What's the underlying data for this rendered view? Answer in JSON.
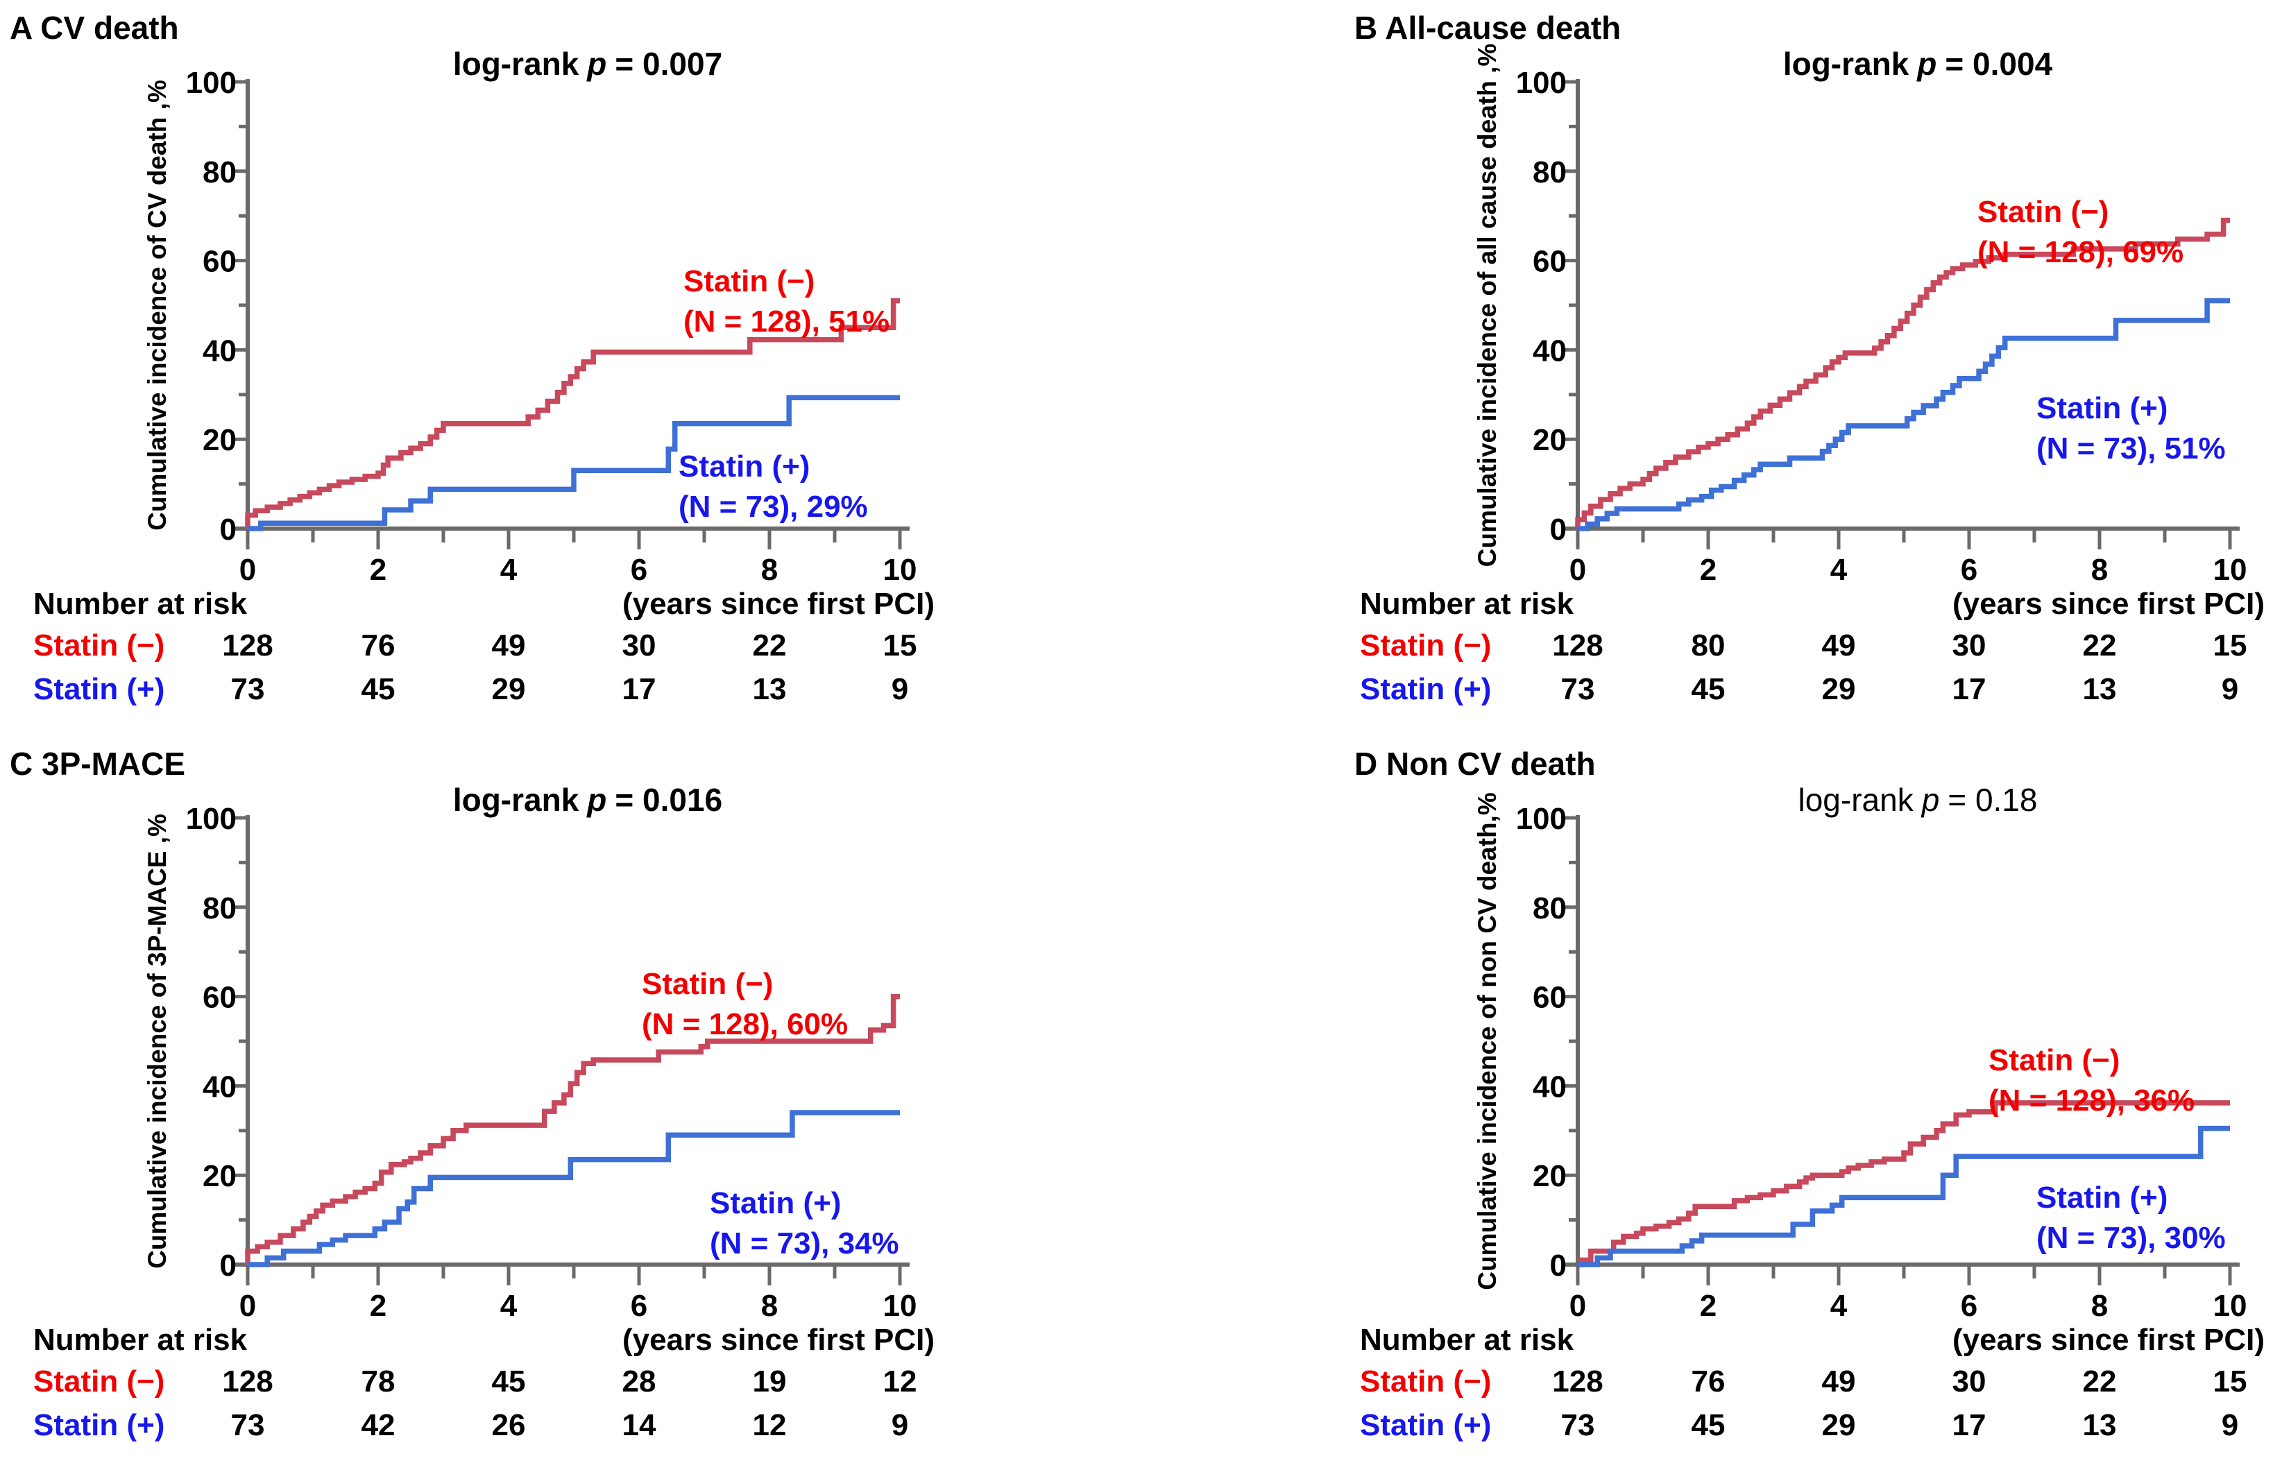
{
  "figure_name": "Kaplan-Meier cumulative incidence curves, statin (−) vs statin (+) after first PCI",
  "colors": {
    "curve_red": "#c8485c",
    "curve_blue": "#3e70d6",
    "label_red": "#f20000",
    "label_blue": "#1717ec",
    "axis_gray": "#6a6a6a",
    "text_black": "#000000"
  },
  "common": {
    "number_at_risk_label": "Number at risk",
    "x_axis_caption": "(years since first PCI)"
  },
  "chart_data": [
    {
      "id": "A",
      "type": "step-line",
      "title": "A CV death",
      "p_prefix": "log-rank",
      "p_sym": "p",
      "p_rest": "= 0.007",
      "p_bold": true,
      "ylabel": "Cumulative incidence of CV death ,%",
      "xlabel": "(years since first PCI)",
      "xlim": [
        0,
        10
      ],
      "ylim": [
        0,
        100
      ],
      "x_ticks": [
        "0",
        "2",
        "4",
        "6",
        "8",
        "10"
      ],
      "y_ticks": [
        "0",
        "20",
        "40",
        "60",
        "80",
        "100"
      ],
      "series": [
        {
          "name": "Statin (−)",
          "n": 128,
          "final_pct": 51,
          "color_key": "red",
          "label_line1": "Statin (−)",
          "label_line2": "(N = 128), 51%",
          "label_anchor": {
            "x": 985,
            "y": 378
          },
          "x": [
            0,
            0.12,
            0.3,
            0.5,
            0.65,
            0.8,
            0.95,
            1.1,
            1.25,
            1.4,
            1.6,
            1.8,
            2.0,
            2.08,
            2.15,
            2.35,
            2.5,
            2.65,
            2.8,
            2.9,
            3.0,
            4.3,
            4.45,
            4.6,
            4.75,
            4.85,
            4.95,
            5.05,
            5.15,
            5.3,
            7.7,
            9.1,
            9.9,
            10
          ],
          "y": [
            3,
            4,
            4.8,
            5.6,
            6.4,
            7.2,
            8,
            8.8,
            9.6,
            10.4,
            11,
            11.7,
            12.4,
            14.2,
            15.8,
            17,
            18,
            19,
            20.5,
            22,
            23.5,
            25,
            26.5,
            28.5,
            30.5,
            32.5,
            34,
            35.8,
            37.3,
            39.5,
            42.3,
            45,
            51,
            51
          ]
        },
        {
          "name": "Statin (+)",
          "n": 73,
          "final_pct": 29,
          "color_key": "blue",
          "label_line1": "Statin (+)",
          "label_line2": "(N = 73), 29%",
          "label_anchor": {
            "x": 978,
            "y": 645
          },
          "x": [
            0,
            0.2,
            2.1,
            2.5,
            2.8,
            5.0,
            6.45,
            6.55,
            8.3,
            10
          ],
          "y": [
            0,
            1.2,
            4.2,
            6.2,
            8.8,
            13,
            17.8,
            23.5,
            29.3,
            29.3
          ]
        }
      ],
      "number_at_risk": {
        "rows": [
          {
            "label": "Statin (−)",
            "color_key": "red",
            "values": [
              "128",
              "76",
              "49",
              "30",
              "22",
              "15"
            ]
          },
          {
            "label": "Statin (+)",
            "color_key": "blue",
            "values": [
              "73",
              "45",
              "29",
              "17",
              "13",
              "9"
            ]
          }
        ]
      }
    },
    {
      "id": "B",
      "type": "step-line",
      "title": "B All-cause death",
      "p_prefix": "log-rank",
      "p_sym": "p",
      "p_rest": "= 0.004",
      "p_bold": true,
      "ylabel": "Cumulative incidence of all cause death ,%",
      "xlabel": "(years since first PCI)",
      "xlim": [
        0,
        10
      ],
      "ylim": [
        0,
        100
      ],
      "x_ticks": [
        "0",
        "2",
        "4",
        "6",
        "8",
        "10"
      ],
      "y_ticks": [
        "0",
        "20",
        "40",
        "60",
        "80",
        "100"
      ],
      "series": [
        {
          "name": "Statin (−)",
          "n": 128,
          "final_pct": 69,
          "color_key": "red",
          "label_line1": "Statin (−)",
          "label_line2": "(N = 128), 69%",
          "label_anchor": {
            "x": 1205,
            "y": 278
          },
          "x": [
            0,
            0.1,
            0.2,
            0.35,
            0.5,
            0.65,
            0.8,
            1.0,
            1.1,
            1.2,
            1.35,
            1.5,
            1.7,
            1.85,
            2.0,
            2.15,
            2.3,
            2.45,
            2.6,
            2.7,
            2.8,
            2.95,
            3.1,
            3.25,
            3.4,
            3.5,
            3.65,
            3.8,
            3.9,
            4.0,
            4.1,
            4.55,
            4.65,
            4.75,
            4.85,
            4.95,
            5.05,
            5.15,
            5.25,
            5.35,
            5.45,
            5.55,
            5.65,
            5.75,
            5.9,
            6.1,
            6.3,
            6.55,
            7.6,
            8.55,
            9.2,
            9.65,
            9.9,
            10
          ],
          "y": [
            2,
            3.5,
            5,
            6.5,
            7.8,
            9,
            10,
            11,
            12.3,
            13.5,
            14.8,
            16,
            17.2,
            18.2,
            19,
            20,
            21,
            22.3,
            23.6,
            25,
            26.3,
            27.6,
            29,
            30.4,
            31.8,
            33,
            34.4,
            36,
            37.3,
            38.3,
            39.3,
            40.4,
            41.8,
            43.2,
            44.8,
            46.4,
            48.2,
            50,
            51.8,
            53.5,
            55,
            56.3,
            57.3,
            58.2,
            59,
            59.8,
            60.6,
            61.4,
            62.6,
            63.7,
            64.8,
            65.9,
            69,
            69
          ]
        },
        {
          "name": "Statin (+)",
          "n": 73,
          "final_pct": 51,
          "color_key": "blue",
          "label_line1": "Statin (+)",
          "label_line2": "(N = 73), 51%",
          "label_anchor": {
            "x": 1290,
            "y": 561
          },
          "x": [
            0,
            0.15,
            0.3,
            0.45,
            0.6,
            1.55,
            1.7,
            1.9,
            2.05,
            2.2,
            2.4,
            2.55,
            2.7,
            2.8,
            3.25,
            3.75,
            3.85,
            3.95,
            4.05,
            4.15,
            5.05,
            5.15,
            5.3,
            5.5,
            5.6,
            5.75,
            5.85,
            6.15,
            6.25,
            6.35,
            6.45,
            6.55,
            8.25,
            9.65,
            10
          ],
          "y": [
            0,
            1,
            2.2,
            3.4,
            4.4,
            5.5,
            6.4,
            7.2,
            8.6,
            9.4,
            10.8,
            12,
            13.2,
            14.4,
            15.8,
            17.3,
            18.6,
            20,
            21.5,
            23,
            24.6,
            26,
            27.5,
            29,
            30.5,
            32,
            33.6,
            35.2,
            36.8,
            38.6,
            40.5,
            42.6,
            46.6,
            51,
            51
          ]
        }
      ],
      "number_at_risk": {
        "rows": [
          {
            "label": "Statin (−)",
            "color_key": "red",
            "values": [
              "128",
              "80",
              "49",
              "30",
              "22",
              "15"
            ]
          },
          {
            "label": "Statin (+)",
            "color_key": "blue",
            "values": [
              "73",
              "45",
              "29",
              "17",
              "13",
              "9"
            ]
          }
        ]
      }
    },
    {
      "id": "C",
      "type": "step-line",
      "title": "C 3P-MACE",
      "p_prefix": "log-rank",
      "p_sym": "p",
      "p_rest": "= 0.016",
      "p_bold": true,
      "ylabel": "Cumulative incidence of 3P-MACE ,%",
      "xlabel": "(years since first PCI)",
      "xlim": [
        0,
        10
      ],
      "ylim": [
        0,
        100
      ],
      "x_ticks": [
        "0",
        "2",
        "4",
        "6",
        "8",
        "10"
      ],
      "y_ticks": [
        "0",
        "20",
        "40",
        "60",
        "80",
        "100"
      ],
      "series": [
        {
          "name": "Statin (−)",
          "n": 128,
          "final_pct": 60,
          "color_key": "red",
          "label_line1": "Statin (−)",
          "label_line2": "(N = 128), 60%",
          "label_anchor": {
            "x": 925,
            "y": 330
          },
          "x": [
            0,
            0.15,
            0.3,
            0.5,
            0.7,
            0.85,
            0.95,
            1.05,
            1.15,
            1.3,
            1.5,
            1.65,
            1.8,
            1.95,
            2.05,
            2.2,
            2.4,
            2.5,
            2.65,
            2.8,
            3.0,
            3.15,
            3.35,
            4.55,
            4.7,
            4.85,
            4.95,
            5.05,
            5.15,
            5.3,
            6.3,
            6.95,
            7.05,
            9.55,
            9.75,
            9.9,
            10
          ],
          "y": [
            3,
            4,
            5,
            6.5,
            8,
            9.5,
            10.8,
            12,
            13.3,
            14.2,
            15.2,
            16.2,
            17,
            18.2,
            20.7,
            22.4,
            23,
            23.8,
            25,
            26.6,
            28.2,
            30,
            31.2,
            34.3,
            36.2,
            38,
            40.5,
            43,
            45,
            45.8,
            47.6,
            48.8,
            50,
            52.5,
            53.5,
            60,
            60
          ]
        },
        {
          "name": "Statin (+)",
          "n": 73,
          "final_pct": 34,
          "color_key": "blue",
          "label_line1": "Statin (+)",
          "label_line2": "(N = 73), 34%",
          "label_anchor": {
            "x": 1023,
            "y": 646
          },
          "x": [
            0,
            0.3,
            0.55,
            1.1,
            1.3,
            1.5,
            1.95,
            2.1,
            2.32,
            2.45,
            2.55,
            2.8,
            4.95,
            6.45,
            8.35,
            10
          ],
          "y": [
            0,
            1.5,
            3,
            4.5,
            5.5,
            6.5,
            8,
            9.5,
            12.5,
            14,
            17,
            19.5,
            23.5,
            29,
            34,
            34
          ]
        }
      ],
      "number_at_risk": {
        "rows": [
          {
            "label": "Statin (−)",
            "color_key": "red",
            "values": [
              "128",
              "78",
              "45",
              "28",
              "19",
              "12"
            ]
          },
          {
            "label": "Statin (+)",
            "color_key": "blue",
            "values": [
              "73",
              "42",
              "26",
              "14",
              "12",
              "9"
            ]
          }
        ]
      }
    },
    {
      "id": "D",
      "type": "step-line",
      "title": "D Non CV death",
      "p_prefix": "log-rank",
      "p_sym": "p",
      "p_rest": "= 0.18",
      "p_bold": false,
      "ylabel": "Cumulative incidence of non CV death,%",
      "xlabel": "(years since first PCI)",
      "xlim": [
        0,
        10
      ],
      "ylim": [
        0,
        100
      ],
      "x_ticks": [
        "0",
        "2",
        "4",
        "6",
        "8",
        "10"
      ],
      "y_ticks": [
        "0",
        "20",
        "40",
        "60",
        "80",
        "100"
      ],
      "series": [
        {
          "name": "Statin (−)",
          "n": 128,
          "final_pct": 36,
          "color_key": "red",
          "label_line1": "Statin (−)",
          "label_line2": "(N = 128), 36%",
          "label_anchor": {
            "x": 1221,
            "y": 440
          },
          "x": [
            0,
            0.05,
            0.2,
            0.55,
            0.7,
            0.9,
            1.0,
            1.2,
            1.4,
            1.55,
            1.7,
            1.8,
            2.4,
            2.6,
            2.8,
            3.0,
            3.2,
            3.4,
            3.5,
            3.6,
            4.05,
            4.15,
            4.3,
            4.5,
            4.7,
            5.0,
            5.1,
            5.3,
            5.5,
            5.6,
            5.8,
            6.0,
            6.4,
            10
          ],
          "y": [
            0,
            1,
            3,
            5,
            6.3,
            7,
            8,
            8.6,
            9.4,
            10.2,
            11.5,
            13,
            14.3,
            15,
            15.6,
            16.5,
            17.5,
            18.5,
            19.4,
            20,
            20.8,
            21.6,
            22.2,
            23,
            23.6,
            25,
            27,
            28.5,
            30,
            31.5,
            33.5,
            34.2,
            36.2,
            36.2
          ]
        },
        {
          "name": "Statin (+)",
          "n": 73,
          "final_pct": 30,
          "color_key": "blue",
          "label_line1": "Statin (+)",
          "label_line2": "(N = 73), 30%",
          "label_anchor": {
            "x": 1290,
            "y": 638
          },
          "x": [
            0,
            0.3,
            0.5,
            1.6,
            1.75,
            1.9,
            3.3,
            3.6,
            3.9,
            4.05,
            5.6,
            5.8,
            9.55,
            10
          ],
          "y": [
            0,
            1.5,
            3,
            4.2,
            5.3,
            6.6,
            9,
            12,
            13.3,
            15,
            20,
            24.2,
            30.5,
            30.5
          ]
        }
      ],
      "number_at_risk": {
        "rows": [
          {
            "label": "Statin (−)",
            "color_key": "red",
            "values": [
              "128",
              "76",
              "49",
              "30",
              "22",
              "15"
            ]
          },
          {
            "label": "Statin (+)",
            "color_key": "blue",
            "values": [
              "73",
              "45",
              "29",
              "17",
              "13",
              "9"
            ]
          }
        ]
      }
    }
  ]
}
